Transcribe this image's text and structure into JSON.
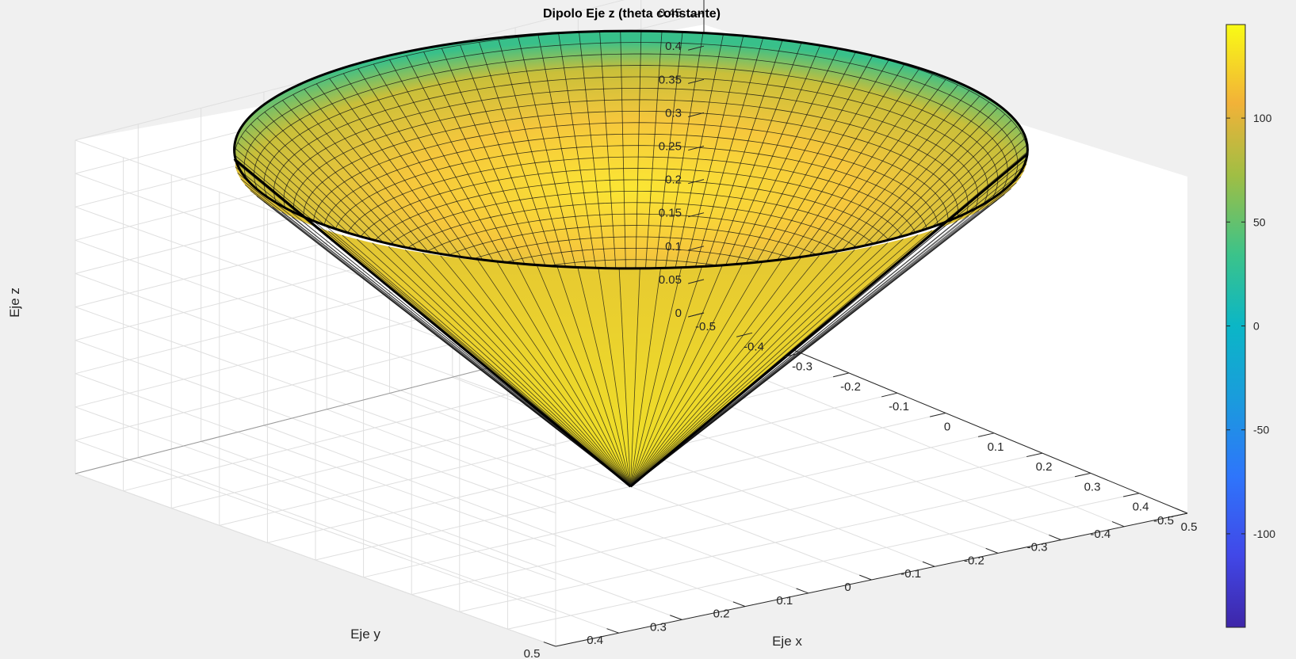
{
  "chart_data": {
    "type": "surface3d",
    "title": "Dipolo Eje z (theta constante)",
    "xlabel": "Eje x",
    "ylabel": "Eje y",
    "zlabel": "Eje z",
    "xlim": [
      -0.5,
      0.5
    ],
    "ylim": [
      -0.5,
      0.5
    ],
    "zlim": [
      0,
      0.5
    ],
    "x_ticks": [
      "-0.5",
      "-0.4",
      "-0.3",
      "-0.2",
      "-0.1",
      "0",
      "0.1",
      "0.2",
      "0.3",
      "0.4",
      "0.5"
    ],
    "y_ticks": [
      "-0.5",
      "-0.4",
      "-0.3",
      "-0.2",
      "-0.1",
      "0",
      "0.1",
      "0.2",
      "0.3",
      "0.4",
      "0.5"
    ],
    "z_ticks": [
      "0",
      "0.05",
      "0.1",
      "0.15",
      "0.2",
      "0.25",
      "0.3",
      "0.35",
      "0.4",
      "0.45",
      "0.5"
    ],
    "grid": true,
    "surface": {
      "shape": "cone",
      "apex": [
        0,
        0,
        0
      ],
      "rim_radius": 0.5,
      "rim_height": 0.5,
      "edge_color": "#000000"
    },
    "colorbar": {
      "colormap": "parula",
      "limits": [
        -145,
        145
      ],
      "ticks": [
        "-100",
        "-50",
        "0",
        "50",
        "100"
      ]
    }
  }
}
